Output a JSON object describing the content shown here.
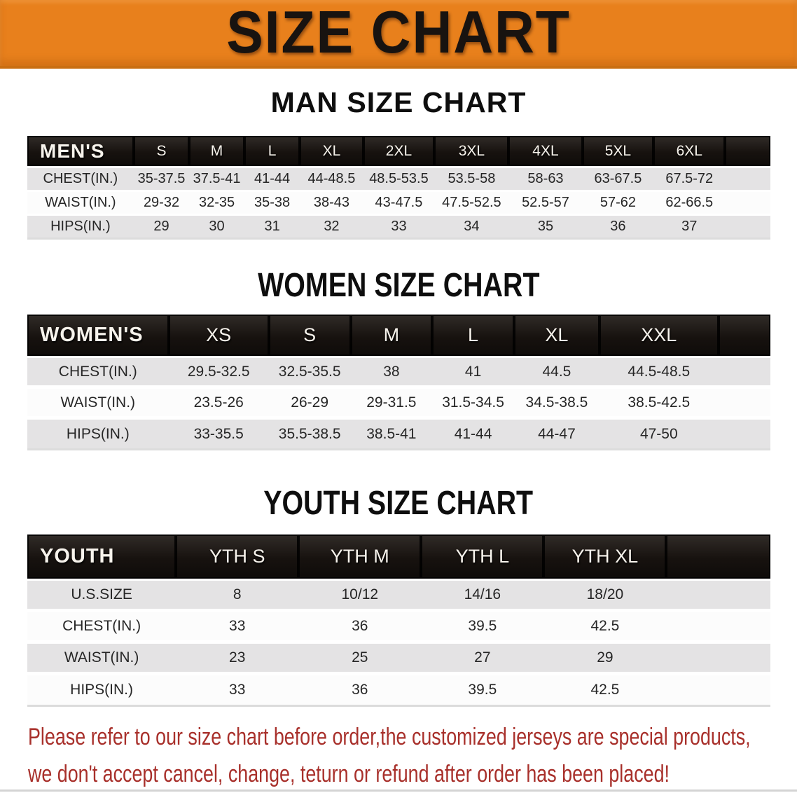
{
  "banner": {
    "title": "SIZE CHART",
    "bg_color": "#e8801c",
    "text_color": "#181310"
  },
  "sections": [
    {
      "heading": "MAN SIZE CHART",
      "table": {
        "label": "MEN'S",
        "columns": [
          "S",
          "M",
          "L",
          "XL",
          "2XL",
          "3XL",
          "4XL",
          "5XL",
          "6XL"
        ],
        "rows": [
          {
            "label": "CHEST(IN.)",
            "values": [
              "35-37.5",
              "37.5-41",
              "41-44",
              "44-48.5",
              "48.5-53.5",
              "53.5-58",
              "58-63",
              "63-67.5",
              "67.5-72"
            ]
          },
          {
            "label": "WAIST(IN.)",
            "values": [
              "29-32",
              "32-35",
              "35-38",
              "38-43",
              "43-47.5",
              "47.5-52.5",
              "52.5-57",
              "57-62",
              "62-66.5"
            ]
          },
          {
            "label": "HIPS(IN.)",
            "values": [
              "29",
              "30",
              "31",
              "32",
              "33",
              "34",
              "35",
              "36",
              "37"
            ]
          }
        ]
      }
    },
    {
      "heading": "WOMEN SIZE CHART",
      "table": {
        "label": "WOMEN'S",
        "columns": [
          "XS",
          "S",
          "M",
          "L",
          "XL",
          "XXL"
        ],
        "rows": [
          {
            "label": "CHEST(IN.)",
            "values": [
              "29.5-32.5",
              "32.5-35.5",
              "38",
              "41",
              "44.5",
              "44.5-48.5"
            ]
          },
          {
            "label": "WAIST(IN.)",
            "values": [
              "23.5-26",
              "26-29",
              "29-31.5",
              "31.5-34.5",
              "34.5-38.5",
              "38.5-42.5"
            ]
          },
          {
            "label": "HIPS(IN.)",
            "values": [
              "33-35.5",
              "35.5-38.5",
              "38.5-41",
              "41-44",
              "44-47",
              "47-50"
            ]
          }
        ]
      }
    },
    {
      "heading": "YOUTH SIZE CHART",
      "table": {
        "label": "YOUTH",
        "columns": [
          "YTH S",
          "YTH M",
          "YTH L",
          "YTH XL"
        ],
        "rows": [
          {
            "label": "U.S.SIZE",
            "values": [
              "8",
              "10/12",
              "14/16",
              "18/20"
            ]
          },
          {
            "label": "CHEST(IN.)",
            "values": [
              "33",
              "36",
              "39.5",
              "42.5"
            ]
          },
          {
            "label": "WAIST(IN.)",
            "values": [
              "23",
              "25",
              "27",
              "29"
            ]
          },
          {
            "label": "HIPS(IN.)",
            "values": [
              "33",
              "36",
              "39.5",
              "42.5"
            ]
          }
        ]
      }
    }
  ],
  "disclaimer": {
    "line1": "Please refer to our size chart before order,the customized jerseys are special products,",
    "line2": "we don't accept cancel, change, teturn or refund after order has been placed!",
    "color": "#a8302b"
  },
  "colors": {
    "banner_bg": "#e8801c",
    "header_bar": "#17120f",
    "header_text": "#f7f3ec",
    "row_gray": "#e4e3e4",
    "row_white": "#fcfcfc",
    "table_text": "#262626",
    "disclaimer_red": "#a8302b"
  }
}
